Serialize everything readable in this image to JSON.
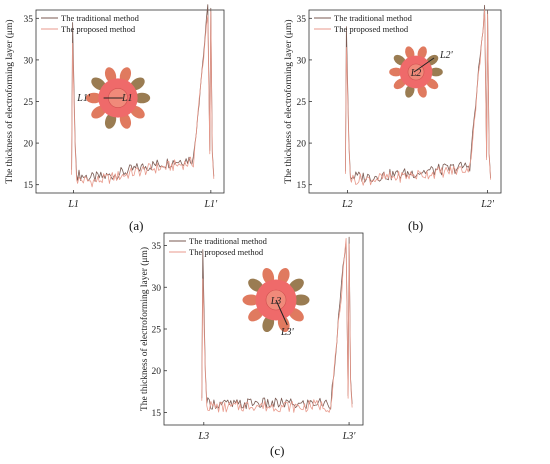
{
  "colors": {
    "traditional": "#7a5a52",
    "proposed": "#e89a8c",
    "gear_body": "#ef6a6a",
    "gear_teeth": "#9a7c52",
    "axes": "#333333"
  },
  "chart_data": [
    {
      "panel_label": "(a)",
      "type": "line",
      "ylabel": "The thickness of electroforming layer (μm)",
      "xticklabels": [
        "L1",
        "L1'"
      ],
      "yticks": [
        15,
        20,
        25,
        30,
        35
      ],
      "ylim": [
        14,
        36
      ],
      "legend_position": "top-left",
      "series": [
        {
          "name": "The traditional method",
          "values": [
            34.5,
            16.2,
            15.8,
            16.0,
            16.4,
            16.9,
            17.3,
            17.6,
            17.9,
            18.1,
            36.2,
            16.0
          ]
        },
        {
          "name": "The proposed method",
          "values": [
            32.0,
            15.6,
            15.4,
            15.7,
            16.1,
            16.5,
            16.9,
            17.1,
            17.4,
            17.7,
            35.8,
            15.7
          ]
        }
      ],
      "inset": {
        "label_start": "L1'",
        "label_end": "L1"
      }
    },
    {
      "panel_label": "(b)",
      "type": "line",
      "ylabel": "The thickness of electroforming layer (μm)",
      "xticklabels": [
        "L2",
        "L2'"
      ],
      "yticks": [
        15,
        20,
        25,
        30,
        35
      ],
      "ylim": [
        14,
        36
      ],
      "legend_position": "top-left",
      "series": [
        {
          "name": "The traditional method",
          "values": [
            34.0,
            16.0,
            15.9,
            16.1,
            16.2,
            16.4,
            16.6,
            16.8,
            17.0,
            17.3,
            36.0,
            15.8
          ]
        },
        {
          "name": "The proposed method",
          "values": [
            31.5,
            15.7,
            15.6,
            15.8,
            15.9,
            16.1,
            16.3,
            16.5,
            16.7,
            17.0,
            35.5,
            15.6
          ]
        }
      ],
      "inset": {
        "label_start": "L2",
        "label_end": "L2'"
      }
    },
    {
      "panel_label": "(c)",
      "type": "line",
      "ylabel": "The thickness of electroforming layer (μm)",
      "xticklabels": [
        "L3",
        "L3'"
      ],
      "yticks": [
        15,
        20,
        25,
        30,
        35
      ],
      "ylim": [
        13.5,
        36.5
      ],
      "legend_position": "top-left",
      "series": [
        {
          "name": "The traditional method",
          "values": [
            34.5,
            16.1,
            16.0,
            15.9,
            16.2,
            16.0,
            16.1,
            15.9,
            16.2,
            16.0,
            36.0,
            16.0
          ]
        },
        {
          "name": "The proposed method",
          "values": [
            31.0,
            15.8,
            15.6,
            15.7,
            15.9,
            15.7,
            15.8,
            15.6,
            15.9,
            15.7,
            35.2,
            15.6
          ]
        }
      ],
      "inset": {
        "label_start": "L3",
        "label_end": "L3'"
      }
    }
  ]
}
